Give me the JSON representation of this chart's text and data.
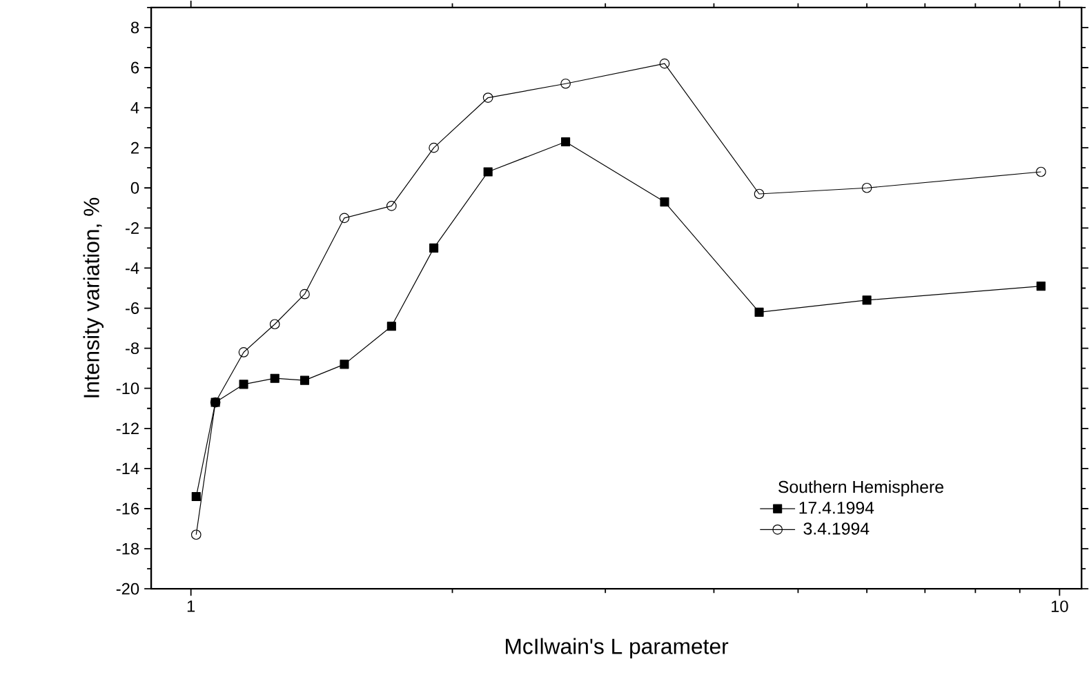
{
  "chart_data": {
    "type": "line",
    "xlabel": "McIlwain's L parameter",
    "ylabel": "Intensity variation, %",
    "legend_title": "Southern Hemisphere",
    "legend": "bottom right",
    "log": "x",
    "grid": false,
    "line_style": "solid",
    "x": [
      1.014,
      1.067,
      1.15,
      1.249,
      1.352,
      1.502,
      1.702,
      1.904,
      2.198,
      2.7,
      3.51,
      4.51,
      6.0,
      9.52
    ],
    "series": [
      {
        "name": "17.4.1994",
        "color": "#000000",
        "marker": "square",
        "values": [
          -15.4,
          -10.7,
          -9.8,
          -9.5,
          -9.6,
          -8.8,
          -6.9,
          -3.0,
          0.8,
          2.3,
          -0.7,
          -6.2,
          -5.6,
          -4.9
        ]
      },
      {
        "name": "  3.4.1994",
        "color": "#000000",
        "marker": "circle",
        "values": [
          -17.3,
          -10.7,
          -8.2,
          -6.8,
          -5.3,
          -1.5,
          -0.9,
          2.0,
          4.5,
          5.2,
          6.2,
          -0.3,
          0.0,
          0.8
        ]
      }
    ],
    "xlim": [
      0.9,
      10.6
    ],
    "ylim": [
      -20,
      9
    ],
    "xticks": [
      1,
      {
        "value": 2,
        "label": null
      },
      {
        "value": 3,
        "label": null
      },
      {
        "value": 4,
        "label": null
      },
      {
        "value": 5,
        "label": null
      },
      {
        "value": 6,
        "label": null
      },
      {
        "value": 7,
        "label": null
      },
      {
        "value": 8,
        "label": null
      },
      {
        "value": 9,
        "label": null
      },
      10
    ],
    "yticks": [
      -20,
      {
        "value": -19,
        "label": null
      },
      -18,
      {
        "value": -17,
        "label": null
      },
      -16,
      {
        "value": -15,
        "label": null
      },
      -14,
      {
        "value": -13,
        "label": null
      },
      -12,
      {
        "value": -11,
        "label": null
      },
      -10,
      {
        "value": -9,
        "label": null
      },
      -8,
      {
        "value": -7,
        "label": null
      },
      -6,
      {
        "value": -5,
        "label": null
      },
      -4,
      {
        "value": -3,
        "label": null
      },
      -2,
      {
        "value": -1,
        "label": null
      },
      0,
      {
        "value": 1,
        "label": null
      },
      2,
      {
        "value": 3,
        "label": null
      },
      4,
      {
        "value": 5,
        "label": null
      },
      6,
      {
        "value": 7,
        "label": null
      },
      8,
      {
        "value": 9,
        "label": null
      }
    ]
  }
}
